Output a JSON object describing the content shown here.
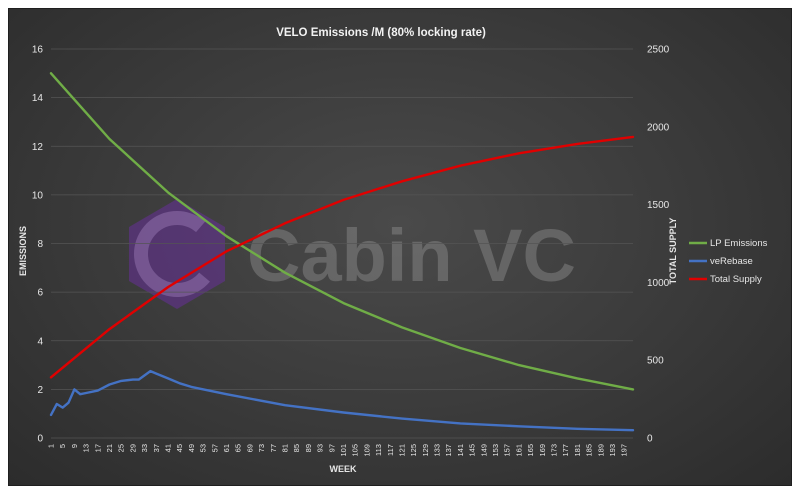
{
  "chart_data": {
    "type": "line",
    "title": "VELO Emissions /M (80% locking rate)",
    "xlabel": "WEEK",
    "ylabel_left": "EMISSIONS",
    "ylabel_right": "TOTAL SUPPLY",
    "ylim_left": [
      0,
      16
    ],
    "ylim_right": [
      0,
      2500
    ],
    "xlim": [
      1,
      200
    ],
    "grid": "horizontal",
    "legend_position": "right",
    "x_tick_labels": [
      "1",
      "5",
      "9",
      "13",
      "17",
      "21",
      "25",
      "29",
      "33",
      "37",
      "41",
      "45",
      "49",
      "53",
      "57",
      "61",
      "65",
      "69",
      "73",
      "77",
      "81",
      "85",
      "89",
      "93",
      "97",
      "101",
      "105",
      "109",
      "113",
      "117",
      "121",
      "125",
      "129",
      "133",
      "137",
      "141",
      "145",
      "149",
      "153",
      "157",
      "161",
      "165",
      "169",
      "173",
      "177",
      "181",
      "185",
      "189",
      "193",
      "197"
    ],
    "y_left_ticks": [
      "0",
      "2",
      "4",
      "6",
      "8",
      "10",
      "12",
      "14",
      "16"
    ],
    "y_right_ticks": [
      "0",
      "500",
      "1000",
      "1500",
      "2000",
      "2500"
    ],
    "series": [
      {
        "name": "LP Emissions",
        "axis": "left",
        "color": "#70ad47",
        "x": [
          1,
          21,
          41,
          61,
          81,
          101,
          121,
          141,
          161,
          181,
          200
        ],
        "values": [
          15.0,
          12.3,
          10.1,
          8.3,
          6.8,
          5.55,
          4.55,
          3.7,
          3.0,
          2.45,
          2.0
        ]
      },
      {
        "name": "veRebase",
        "axis": "left",
        "color": "#4472c4",
        "x": [
          1,
          3,
          5,
          7,
          9,
          11,
          13,
          17,
          21,
          25,
          29,
          31,
          35,
          37,
          41,
          45,
          49,
          61,
          81,
          101,
          121,
          141,
          161,
          181,
          200
        ],
        "values": [
          0.95,
          1.4,
          1.25,
          1.45,
          2.0,
          1.8,
          1.85,
          1.95,
          2.2,
          2.35,
          2.4,
          2.4,
          2.75,
          2.65,
          2.45,
          2.25,
          2.1,
          1.8,
          1.35,
          1.05,
          0.8,
          0.6,
          0.48,
          0.38,
          0.32
        ]
      },
      {
        "name": "Total Supply",
        "axis": "right",
        "color": "#e00000",
        "x": [
          1,
          21,
          41,
          61,
          81,
          101,
          121,
          141,
          161,
          181,
          200
        ],
        "values": [
          390,
          700,
          970,
          1200,
          1380,
          1530,
          1650,
          1750,
          1830,
          1890,
          1935
        ]
      }
    ]
  },
  "watermark": {
    "text": "Cabin VC",
    "logo_colors": [
      "#6b2fa3",
      "#8e44c9"
    ]
  }
}
